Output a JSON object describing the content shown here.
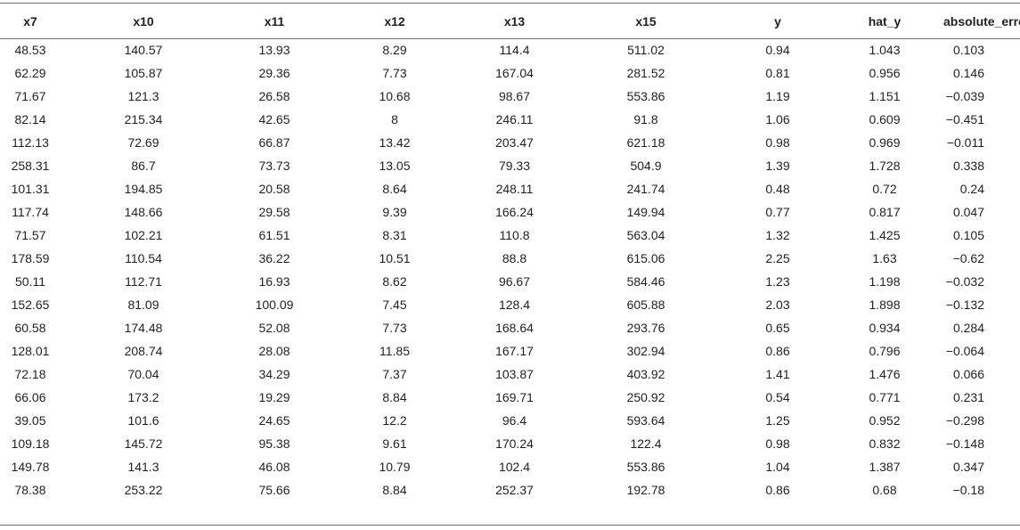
{
  "table": {
    "columns": [
      "x7",
      "x10",
      "x11",
      "x12",
      "x13",
      "x15",
      "y",
      "hat_y",
      "absolute_error"
    ],
    "rows": [
      [
        "48.53",
        "140.57",
        "13.93",
        "8.29",
        "114.4",
        "511.02",
        "0.94",
        "1.043",
        "0.103"
      ],
      [
        "62.29",
        "105.87",
        "29.36",
        "7.73",
        "167.04",
        "281.52",
        "0.81",
        "0.956",
        "0.146"
      ],
      [
        "71.67",
        "121.3",
        "26.58",
        "10.68",
        "98.67",
        "553.86",
        "1.19",
        "1.151",
        "−0.039"
      ],
      [
        "82.14",
        "215.34",
        "42.65",
        "8",
        "246.11",
        "91.8",
        "1.06",
        "0.609",
        "−0.451"
      ],
      [
        "112.13",
        "72.69",
        "66.87",
        "13.42",
        "203.47",
        "621.18",
        "0.98",
        "0.969",
        "−0.011"
      ],
      [
        "258.31",
        "86.7",
        "73.73",
        "13.05",
        "79.33",
        "504.9",
        "1.39",
        "1.728",
        "0.338"
      ],
      [
        "101.31",
        "194.85",
        "20.58",
        "8.64",
        "248.11",
        "241.74",
        "0.48",
        "0.72",
        "0.24"
      ],
      [
        "117.74",
        "148.66",
        "29.58",
        "9.39",
        "166.24",
        "149.94",
        "0.77",
        "0.817",
        "0.047"
      ],
      [
        "71.57",
        "102.21",
        "61.51",
        "8.31",
        "110.8",
        "563.04",
        "1.32",
        "1.425",
        "0.105"
      ],
      [
        "178.59",
        "110.54",
        "36.22",
        "10.51",
        "88.8",
        "615.06",
        "2.25",
        "1.63",
        "−0.62"
      ],
      [
        "50.11",
        "112.71",
        "16.93",
        "8.62",
        "96.67",
        "584.46",
        "1.23",
        "1.198",
        "−0.032"
      ],
      [
        "152.65",
        "81.09",
        "100.09",
        "7.45",
        "128.4",
        "605.88",
        "2.03",
        "1.898",
        "−0.132"
      ],
      [
        "60.58",
        "174.48",
        "52.08",
        "7.73",
        "168.64",
        "293.76",
        "0.65",
        "0.934",
        "0.284"
      ],
      [
        "128.01",
        "208.74",
        "28.08",
        "11.85",
        "167.17",
        "302.94",
        "0.86",
        "0.796",
        "−0.064"
      ],
      [
        "72.18",
        "70.04",
        "34.29",
        "7.37",
        "103.87",
        "403.92",
        "1.41",
        "1.476",
        "0.066"
      ],
      [
        "66.06",
        "173.2",
        "19.29",
        "8.84",
        "169.71",
        "250.92",
        "0.54",
        "0.771",
        "0.231"
      ],
      [
        "39.05",
        "101.6",
        "24.65",
        "12.2",
        "96.4",
        "593.64",
        "1.25",
        "0.952",
        "−0.298"
      ],
      [
        "109.18",
        "145.72",
        "95.38",
        "9.61",
        "170.24",
        "122.4",
        "0.98",
        "0.832",
        "−0.148"
      ],
      [
        "149.78",
        "141.3",
        "46.08",
        "10.79",
        "102.4",
        "553.86",
        "1.04",
        "1.387",
        "0.347"
      ],
      [
        "78.38",
        "253.22",
        "75.66",
        "8.84",
        "252.37",
        "192.78",
        "0.86",
        "0.68",
        "−0.18"
      ]
    ]
  }
}
